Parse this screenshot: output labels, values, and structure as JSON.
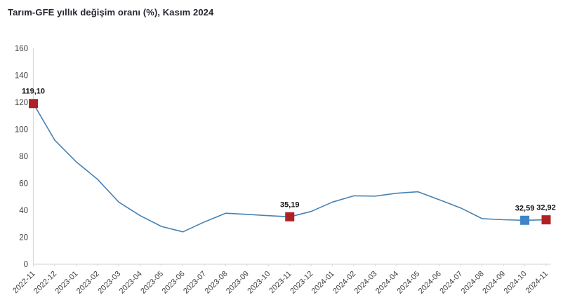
{
  "title": "Tarım-GFE yıllık değişim oranı (%), Kasım 2024",
  "colors": {
    "line": "#4682b4",
    "marker_red": "#b02126",
    "marker_blue": "#3d85c6",
    "axis_line": "#d9d9d9",
    "tick_text": "#404040",
    "title_text": "#26262e",
    "value_label_text": "#141414",
    "background": "#ffffff"
  },
  "chart_data": {
    "type": "line",
    "title": "Tarım-GFE yıllık değişim oranı (%), Kasım 2024",
    "xlabel": "",
    "ylabel": "",
    "ylim": [
      0,
      160
    ],
    "ytick_step": 20,
    "ytick_labels": [
      "0",
      "20",
      "40",
      "60",
      "80",
      "100",
      "120",
      "140",
      "160"
    ],
    "grid": false,
    "legend": false,
    "categories": [
      "2022-11",
      "2022-12",
      "2023-01",
      "2023-02",
      "2023-03",
      "2023-04",
      "2023-05",
      "2023-06",
      "2023-07",
      "2023-08",
      "2023-09",
      "2023-10",
      "2023-11",
      "2023-12",
      "2024-01",
      "2024-02",
      "2024-03",
      "2024-04",
      "2024-05",
      "2024-06",
      "2024-07",
      "2024-08",
      "2024-09",
      "2024-10",
      "2024-11"
    ],
    "series": [
      {
        "name": "Tarım-GFE yıllık değişim oranı (%)",
        "values": [
          119.1,
          92.0,
          76.0,
          63.0,
          46.0,
          36.0,
          28.0,
          24.0,
          31.3,
          37.8,
          37.0,
          36.0,
          35.19,
          39.1,
          46.1,
          50.7,
          50.5,
          52.6,
          53.7,
          47.8,
          41.7,
          33.8,
          33.0,
          32.59,
          32.92
        ]
      }
    ],
    "marked_points": [
      {
        "index": 0,
        "category": "2022-11",
        "value": 119.1,
        "label": "119,10",
        "color": "#b02126"
      },
      {
        "index": 12,
        "category": "2023-11",
        "value": 35.19,
        "label": "35,19",
        "color": "#b02126"
      },
      {
        "index": 23,
        "category": "2024-10",
        "value": 32.59,
        "label": "32,59",
        "color": "#3d85c6"
      },
      {
        "index": 24,
        "category": "2024-11",
        "value": 32.92,
        "label": "32,92",
        "color": "#b02126"
      }
    ]
  }
}
